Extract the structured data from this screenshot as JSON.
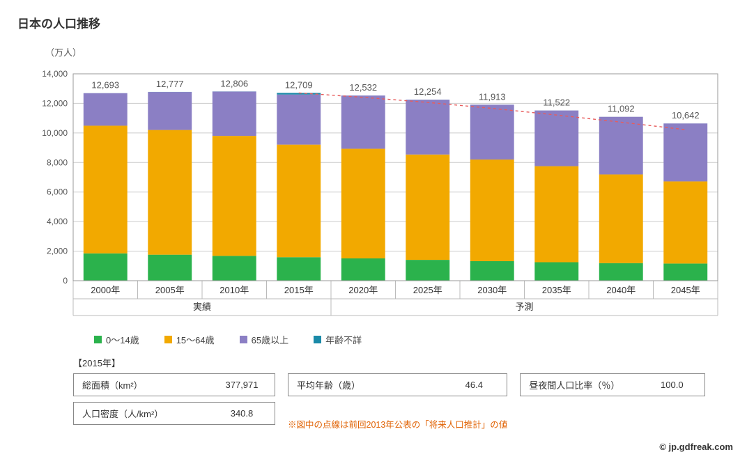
{
  "title": "日本の人口推移",
  "y_axis_label": "（万人）",
  "chart": {
    "type": "stacked-bar",
    "ylim": [
      0,
      14000
    ],
    "ytick_step": 2000,
    "yticks": [
      "0",
      "2,000",
      "4,000",
      "6,000",
      "8,000",
      "10,000",
      "12,000",
      "14,000"
    ],
    "background_color": "#ffffff",
    "plot_border_color": "#999999",
    "grid_color": "#cccccc",
    "divider_color": "#bbbbbb",
    "axis_font_size": 12,
    "label_font_size": 13,
    "value_label_font_size": 13,
    "value_label_color": "#555555",
    "bar_width_ratio": 0.68,
    "series": [
      {
        "key": "age_0_14",
        "label": "0～14歳",
        "color": "#2bb24c"
      },
      {
        "key": "age_15_64",
        "label": "15～64歳",
        "color": "#f2a900"
      },
      {
        "key": "age_65p",
        "label": "65歳以上",
        "color": "#8b7fc4"
      },
      {
        "key": "age_unk",
        "label": "年齢不詳",
        "color": "#1a8aa8"
      }
    ],
    "groups": [
      {
        "label": "実績",
        "count": 4
      },
      {
        "label": "予測",
        "count": 6
      }
    ],
    "categories": [
      "2000年",
      "2005年",
      "2010年",
      "2015年",
      "2020年",
      "2025年",
      "2030年",
      "2035年",
      "2040年",
      "2045年"
    ],
    "totals_labels": [
      "12,693",
      "12,777",
      "12,806",
      "12,709",
      "12,532",
      "12,254",
      "11,913",
      "11,522",
      "11,092",
      "10,642"
    ],
    "data": {
      "age_0_14": [
        1850,
        1760,
        1680,
        1590,
        1510,
        1410,
        1320,
        1250,
        1190,
        1160
      ],
      "age_15_64": [
        8640,
        8440,
        8120,
        7620,
        7420,
        7130,
        6880,
        6500,
        6000,
        5560
      ],
      "age_65p": [
        2200,
        2570,
        3000,
        3390,
        3600,
        3710,
        3710,
        3770,
        3900,
        3920
      ],
      "age_unk": [
        3,
        7,
        6,
        109,
        2,
        4,
        3,
        2,
        2,
        2
      ]
    },
    "projection_line": {
      "label": "前回2013年公表の「将来人口推計」の値",
      "color": "#e85c5c",
      "dash": [
        4,
        4
      ],
      "width": 1.4,
      "start_index": 3,
      "values": [
        12709,
        12410,
        12066,
        11662,
        11212,
        10728,
        10220
      ]
    }
  },
  "legend_items": [
    {
      "label": "0～14歳",
      "color": "#2bb24c"
    },
    {
      "label": "15～64歳",
      "color": "#f2a900"
    },
    {
      "label": "65歳以上",
      "color": "#8b7fc4"
    },
    {
      "label": "年齢不詳",
      "color": "#1a8aa8"
    }
  ],
  "stats_year_label": "【2015年】",
  "stats": {
    "area": {
      "label": "総面積（km²）",
      "value": "377,971"
    },
    "density": {
      "label": "人口密度（人/km²）",
      "value": "340.8"
    },
    "avg_age": {
      "label": "平均年齢（歳）",
      "value": "46.4"
    },
    "day_pop": {
      "label": "昼夜間人口比率（％）",
      "value": "100.0"
    }
  },
  "footnote": "※図中の点線は前回2013年公表の「将来人口推計」の値",
  "copyright": "© jp.gdfreak.com"
}
